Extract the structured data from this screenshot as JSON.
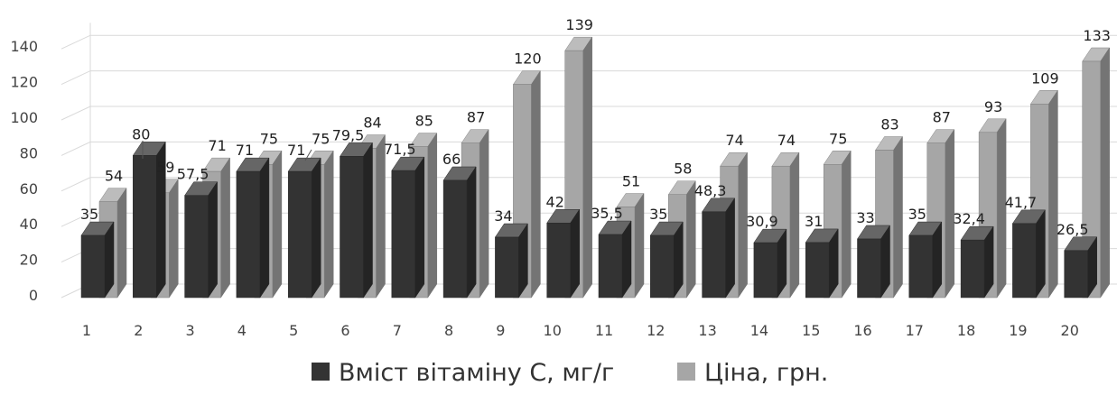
{
  "chart_data": {
    "type": "bar",
    "three_d": true,
    "title": "",
    "xlabel": "",
    "ylabel": "",
    "ylim": [
      0,
      140
    ],
    "y_ticks": [
      "0",
      "20",
      "40",
      "60",
      "80",
      "100",
      "120",
      "140"
    ],
    "categories": [
      "1",
      "2",
      "3",
      "4",
      "5",
      "6",
      "7",
      "8",
      "9",
      "10",
      "11",
      "12",
      "13",
      "14",
      "15",
      "16",
      "17",
      "18",
      "19",
      "20"
    ],
    "series": [
      {
        "name": "Вміст вітаміну С, мг/г",
        "color": "#333333",
        "values": [
          35,
          80,
          57.5,
          71,
          71,
          79.5,
          71.5,
          66,
          34,
          42,
          35.5,
          35,
          48.3,
          30.9,
          31,
          33,
          35,
          32.4,
          41.7,
          26.5
        ],
        "labels": [
          "35",
          "80",
          "57,5",
          "71",
          "71",
          "79,5",
          "71,5",
          "66",
          "34",
          "42",
          "35,5",
          "35",
          "48,3",
          "30,9",
          "31",
          "33",
          "35",
          "32,4",
          "41,7",
          "26,5"
        ]
      },
      {
        "name": "Ціна, грн.",
        "color": "#a6a6a6",
        "values": [
          54,
          59,
          71,
          75,
          75,
          84,
          85,
          87,
          120,
          139,
          51,
          58,
          74,
          74,
          75,
          83,
          87,
          93,
          109,
          133
        ],
        "labels": [
          "54",
          "59",
          "71",
          "75",
          "75",
          "84",
          "85",
          "87",
          "120",
          "139",
          "51",
          "58",
          "74",
          "74",
          "75",
          "83",
          "87",
          "93",
          "109",
          "133"
        ]
      }
    ],
    "grid": true,
    "legend_position": "bottom"
  }
}
